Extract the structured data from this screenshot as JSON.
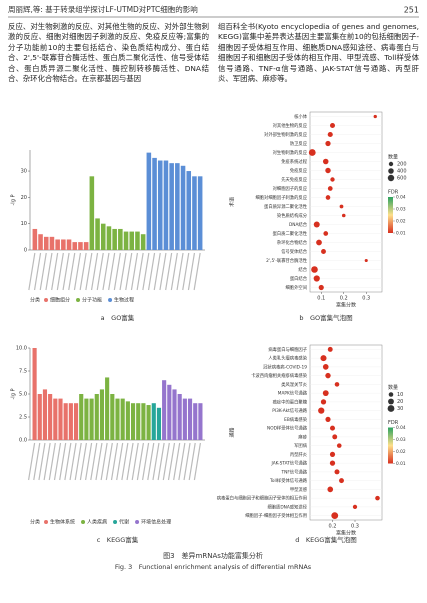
{
  "header": {
    "title": "周丽辉,等: 基于转录组学探讨LF-UTMD对PTC细胞的影响",
    "page": "251"
  },
  "body": {
    "left": "反应、对生物刺激的反应、对其他生物的反应、对外部生物刺激的反应、细胞对细胞因子刺激的反应、免疫反应等;富集的分子功能前10的主要包括结合、染色质结构成分、蛋白结合、2',5'-联寡苷合酶活性、蛋白质二聚化活性、信号受体结合、蛋白质异源二聚化活性、酶控制转移酶活性、DNA结合、杂环化合物结合。在京都基因与基因",
    "right": "组百科全书(Kyoto encyclopedia of genes and genomes, KEGG)富集中差异表达基因主要富集在前10的包括细胞因子-细胞因子受体相互作用、细胞质DNA感知途径、病毒蛋白与细胞因子和细胞因子受体的相互作用、甲型流感、Toll样受体信号通路、TNF-α信号通路、JAK-STAT信号通路、丙型肝炎、军团病、麻疹等。"
  },
  "caption": {
    "cn": "图3　差异mRNAs功能富集分析",
    "en": "Fig. 3　Functional enrichment analysis of differential mRNAs"
  },
  "chart_data": [
    {
      "type": "bar",
      "label": "a　GO富集",
      "ylabel": "-lg P",
      "legend_title": "分类",
      "ylim": [
        0,
        38
      ],
      "yticks": [
        0,
        10,
        20,
        30
      ],
      "series": [
        {
          "name": "细胞组分",
          "color": "#e8726a",
          "values": [
            8,
            6,
            5,
            5,
            4,
            4,
            4,
            3,
            3,
            3
          ]
        },
        {
          "name": "分子功能",
          "color": "#7cb342",
          "values": [
            28,
            12,
            10,
            9,
            8,
            8,
            7,
            7,
            7,
            6
          ]
        },
        {
          "name": "生物过程",
          "color": "#5b8ed6",
          "values": [
            37,
            35,
            34,
            34,
            33,
            33,
            32,
            30,
            28,
            28
          ]
        }
      ]
    },
    {
      "type": "bubble",
      "label": "b　GO富集气泡图",
      "xlabel": "富集分数",
      "ylabel": "术语",
      "xlim": [
        0.05,
        0.37
      ],
      "xticks": [
        0.1,
        0.2,
        0.3
      ],
      "color": "#d7301f",
      "size_legend_title": "数量",
      "size_legend": [
        200,
        400,
        600
      ],
      "color_legend_title": "FDR",
      "color_ticks": [
        0.01,
        0.02,
        0.03,
        0.04
      ],
      "categories": [
        "核小体",
        "对其他生物的反应",
        "对外部生物刺激的反应",
        "防卫反应",
        "对生物刺激的反应",
        "免疫系统过程",
        "免疫反应",
        "先天免疫反应",
        "对细胞因子的反应",
        "细胞对细胞因子刺激的反应",
        "蛋白质异源二聚化活性",
        "染色质结构成分",
        "DNA结合",
        "蛋白质二聚化活性",
        "杂环化合物结合",
        "信号受体结合",
        "2',5'-联寡苷合酶活性",
        "结合",
        "蛋白结合",
        "细胞外空间"
      ],
      "values": [
        0.34,
        0.15,
        0.14,
        0.13,
        0.06,
        0.12,
        0.13,
        0.15,
        0.14,
        0.13,
        0.19,
        0.2,
        0.08,
        0.12,
        0.09,
        0.11,
        0.3,
        0.07,
        0.08,
        0.1
      ],
      "sizes": [
        80,
        300,
        320,
        350,
        700,
        400,
        380,
        200,
        260,
        240,
        120,
        100,
        500,
        250,
        450,
        280,
        60,
        650,
        550,
        330
      ]
    },
    {
      "type": "bar",
      "label": "c　KEGG富集",
      "ylabel": "-lg P",
      "legend_title": "分类",
      "ylim": [
        0,
        10
      ],
      "yticks": [
        {
          "value": 0,
          "label": "0.0"
        },
        {
          "value": 2.5,
          "label": "2.5"
        },
        {
          "value": 5,
          "label": "5.0"
        },
        {
          "value": 7.5,
          "label": "7.5"
        },
        {
          "value": 10,
          "label": "10.0"
        }
      ],
      "series": [
        {
          "name": "生物体系统",
          "color": "#e8726a",
          "values": [
            10,
            5,
            5.5,
            5,
            4.5,
            4.5,
            4,
            4,
            4
          ]
        },
        {
          "name": "人类疾病",
          "color": "#7cb342",
          "values": [
            5,
            4.5,
            4.5,
            5,
            5.5,
            6.8,
            5,
            4.5,
            4.5,
            4.2,
            4,
            4,
            4,
            3.8
          ]
        },
        {
          "name": "代谢",
          "color": "#26a69a",
          "values": [
            4,
            3.5
          ]
        },
        {
          "name": "环境信息处理",
          "color": "#9575cd",
          "values": [
            6.5,
            6,
            5.5,
            5,
            4.5,
            4.5,
            4,
            4
          ]
        }
      ]
    },
    {
      "type": "bubble",
      "label": "d　KEGG富集气泡图",
      "xlabel": "富集分数",
      "ylabel": "通路",
      "xlim": [
        0.1,
        0.42
      ],
      "xticks": [
        0.2,
        0.3
      ],
      "color": "#d7301f",
      "size_legend_title": "数量",
      "size_legend": [
        10,
        20,
        30
      ],
      "color_legend_title": "FDR",
      "color_ticks": [
        0.01,
        0.02,
        0.03,
        0.04
      ],
      "categories": [
        "病毒蛋白与细胞因子",
        "人类乳头瘤病毒感染",
        "冠状病毒病-COVID-19",
        "卡波西肉瘤相关疱疹病毒感染",
        "类风湿关节炎",
        "MAPK信号通路",
        "癌症中的蛋白聚糖",
        "PI3K-Akt信号通路",
        "EB病毒感染",
        "NOD样受体信号通路",
        "麻疹",
        "军团病",
        "丙型肝炎",
        "JAK-STAT信号通路",
        "TNF信号通路",
        "Toll样受体信号通路",
        "甲型流感",
        "病毒蛋白与细胞因子和细胞因子受体的相互作用",
        "细胞质DNA感知途径",
        "细胞因子-细胞因子受体相互作用"
      ],
      "values": [
        0.19,
        0.16,
        0.17,
        0.18,
        0.22,
        0.17,
        0.16,
        0.15,
        0.18,
        0.2,
        0.21,
        0.23,
        0.2,
        0.2,
        0.22,
        0.24,
        0.19,
        0.4,
        0.3,
        0.21
      ],
      "sizes": [
        12,
        22,
        18,
        16,
        10,
        20,
        15,
        24,
        14,
        13,
        12,
        10,
        14,
        15,
        13,
        12,
        18,
        10,
        8,
        30
      ]
    }
  ]
}
